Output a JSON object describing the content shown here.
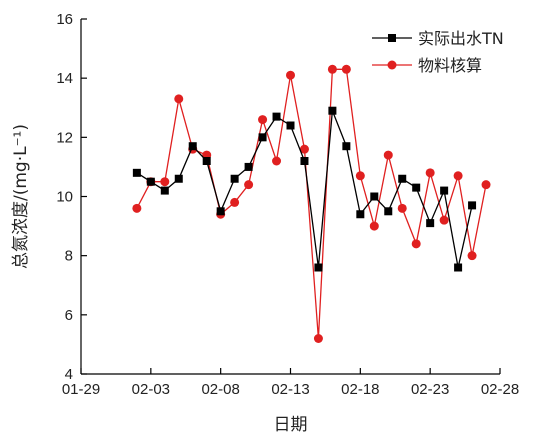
{
  "chart_data": {
    "type": "line",
    "xlabel": "日期",
    "ylabel": "总氮浓度/(mg·L⁻¹)",
    "ylim": [
      4,
      16
    ],
    "yticks": [
      4,
      6,
      8,
      10,
      12,
      14,
      16
    ],
    "xlim": [
      0,
      30
    ],
    "xticks": [
      0,
      5,
      10,
      15,
      20,
      25,
      30
    ],
    "xtick_labels": [
      "01-29",
      "02-03",
      "02-08",
      "02-13",
      "02-18",
      "02-23",
      "02-28"
    ],
    "grid": false,
    "legend_position": "top-right",
    "series": [
      {
        "name": "实际出水TN",
        "color": "#000000",
        "marker": "square",
        "x": [
          4,
          5,
          6,
          7,
          8,
          9,
          10,
          11,
          12,
          13,
          14,
          15,
          16,
          17,
          18,
          19,
          20,
          21,
          22,
          23,
          24,
          25,
          26,
          27,
          28
        ],
        "values": [
          10.8,
          10.5,
          10.2,
          10.6,
          11.7,
          11.2,
          9.5,
          10.6,
          11.0,
          12.0,
          12.7,
          12.4,
          11.2,
          7.6,
          12.9,
          11.7,
          9.4,
          10.0,
          9.5,
          10.6,
          10.3,
          9.1,
          10.2,
          7.6,
          9.7
        ]
      },
      {
        "name": "物料核算",
        "color": "#e02020",
        "marker": "circle",
        "x": [
          4,
          5,
          6,
          7,
          8,
          9,
          10,
          11,
          12,
          13,
          14,
          15,
          16,
          17,
          18,
          19,
          20,
          21,
          22,
          23,
          24,
          25,
          26,
          27,
          28,
          29
        ],
        "values": [
          9.6,
          10.5,
          10.5,
          13.3,
          11.6,
          11.4,
          9.4,
          9.8,
          10.4,
          12.6,
          11.2,
          14.1,
          11.6,
          5.2,
          14.3,
          14.3,
          10.7,
          9.0,
          11.4,
          9.6,
          8.4,
          10.8,
          9.2,
          10.7,
          8.0,
          10.4
        ]
      }
    ]
  }
}
